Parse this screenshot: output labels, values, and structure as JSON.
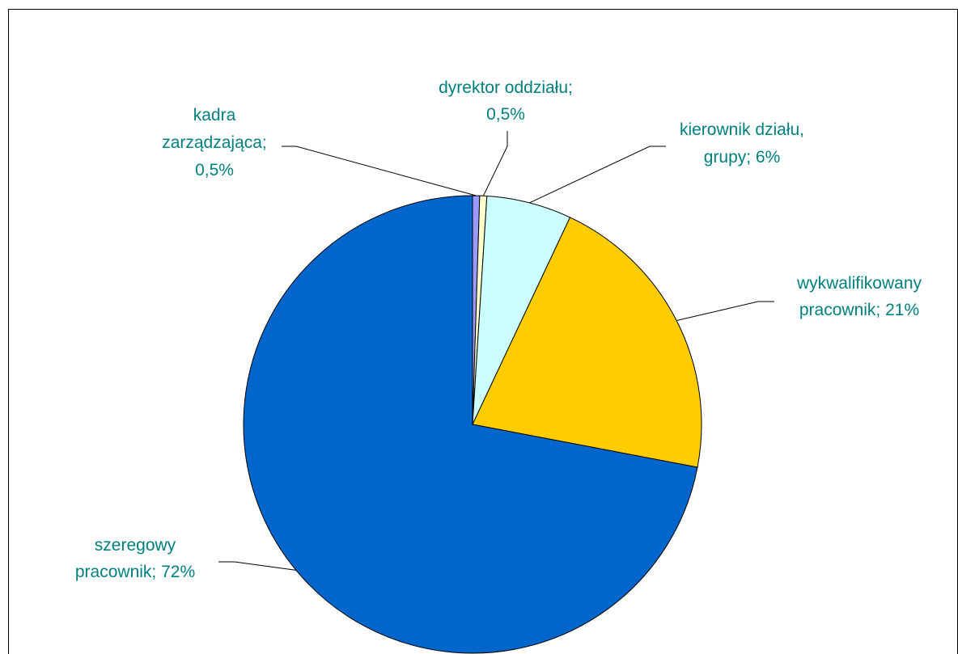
{
  "chart_data": {
    "type": "pie",
    "title": "",
    "label_color": "#007F7F",
    "slices": [
      {
        "name": "kadra zarządzająca",
        "value": 0.5,
        "label_lines": [
          "kadra",
          "zarządzająca;",
          "0,5%"
        ],
        "color": "#9999FF"
      },
      {
        "name": "dyrektor oddziału",
        "value": 0.5,
        "label_lines": [
          "dyrektor oddziału;",
          "0,5%"
        ],
        "color": "#FFFFCC"
      },
      {
        "name": "kierownik działu, grupy",
        "value": 6,
        "label_lines": [
          "kierownik działu,",
          "grupy; 6%"
        ],
        "color": "#CCFFFF"
      },
      {
        "name": "wykwalifikowany pracownik",
        "value": 21,
        "label_lines": [
          "wykwalifikowany",
          "pracownik; 21%"
        ],
        "color": "#FFCC00"
      },
      {
        "name": "szeregowy pracownik",
        "value": 72,
        "label_lines": [
          "szeregowy",
          "pracownik; 72%"
        ],
        "color": "#0066CC"
      }
    ]
  }
}
